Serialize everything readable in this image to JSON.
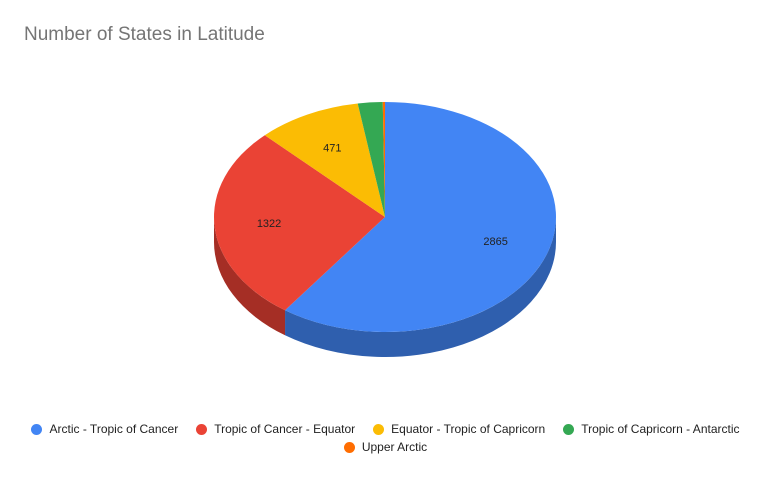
{
  "chart_data": {
    "type": "pie",
    "title": "Number of States in Latitude",
    "legend_position": "bottom",
    "slices": [
      {
        "label": "Arctic - Tropic of Cancer",
        "value": 2865,
        "color": "#4285F4",
        "shade": "#2F5FAE",
        "data_label": "2865"
      },
      {
        "label": "Tropic of Cancer - Equator",
        "value": 1322,
        "color": "#EA4335",
        "shade": "#A52E25",
        "data_label": "1322"
      },
      {
        "label": "Equator - Tropic of Capricorn",
        "value": 471,
        "color": "#FBBC04",
        "shade": "#B08503",
        "data_label": "471"
      },
      {
        "label": "Tropic of Capricorn - Antarctic",
        "value": 112,
        "color": "#34A853",
        "shade": "#24763A",
        "data_label": ""
      },
      {
        "label": "Upper Arctic",
        "value": 10,
        "color": "#FF6D01",
        "shade": "#B34C00",
        "data_label": ""
      }
    ]
  }
}
